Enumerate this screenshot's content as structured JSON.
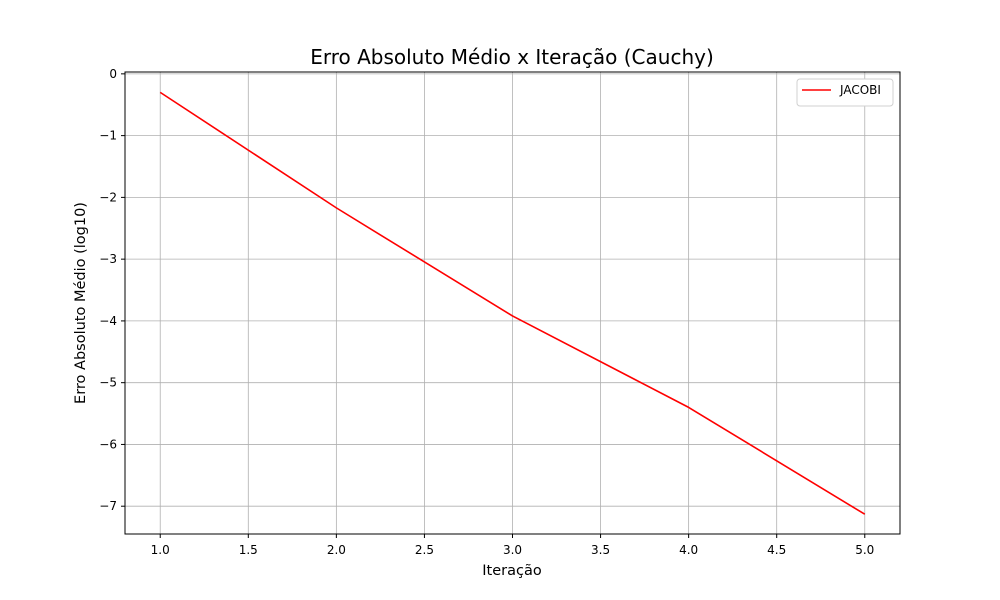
{
  "chart_data": {
    "type": "line",
    "title": "Erro Absoluto Médio x Iteração (Cauchy)",
    "xlabel": "Iteração",
    "ylabel": "Erro Absoluto Médio (log10)",
    "xlim": [
      0.8,
      5.2
    ],
    "ylim": [
      -7.45,
      0.03
    ],
    "x_ticks": [
      1.0,
      1.5,
      2.0,
      2.5,
      3.0,
      3.5,
      4.0,
      4.5,
      5.0
    ],
    "x_tick_labels": [
      "1.0",
      "1.5",
      "2.0",
      "2.5",
      "3.0",
      "3.5",
      "4.0",
      "4.5",
      "5.0"
    ],
    "y_ticks": [
      0,
      -1,
      -2,
      -3,
      -4,
      -5,
      -6,
      -7
    ],
    "y_tick_labels": [
      "0",
      "−1",
      "−2",
      "−3",
      "−4",
      "−5",
      "−6",
      "−7"
    ],
    "grid": true,
    "legend_position": "top-right",
    "series": [
      {
        "name": "JACOBI",
        "color": "#ff0000",
        "x": [
          1,
          2,
          3,
          4,
          5
        ],
        "y": [
          -0.3,
          -2.17,
          -3.92,
          -5.4,
          -7.13
        ]
      }
    ]
  }
}
